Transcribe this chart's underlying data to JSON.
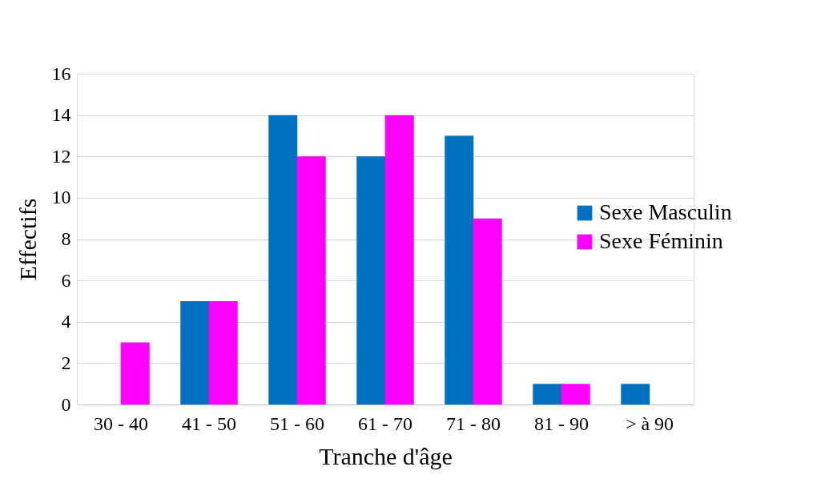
{
  "chart_data": {
    "type": "bar",
    "xlabel": "Tranche d'âge",
    "ylabel": "Effectifs",
    "categories": [
      "30 - 40",
      "41 - 50",
      "51 - 60",
      "61 - 70",
      "71 - 80",
      "81 - 90",
      "> à 90"
    ],
    "series": [
      {
        "name": "Sexe Masculin",
        "color": "#0070c0",
        "values": [
          0,
          5,
          14,
          12,
          13,
          1,
          1
        ]
      },
      {
        "name": "Sexe Féminin",
        "color": "#ff00ff",
        "values": [
          3,
          5,
          12,
          14,
          9,
          1,
          0
        ]
      }
    ],
    "ylim": [
      0,
      16
    ],
    "yticks": [
      0,
      2,
      4,
      6,
      8,
      10,
      12,
      14,
      16
    ],
    "grid": "y",
    "legend": "right"
  }
}
